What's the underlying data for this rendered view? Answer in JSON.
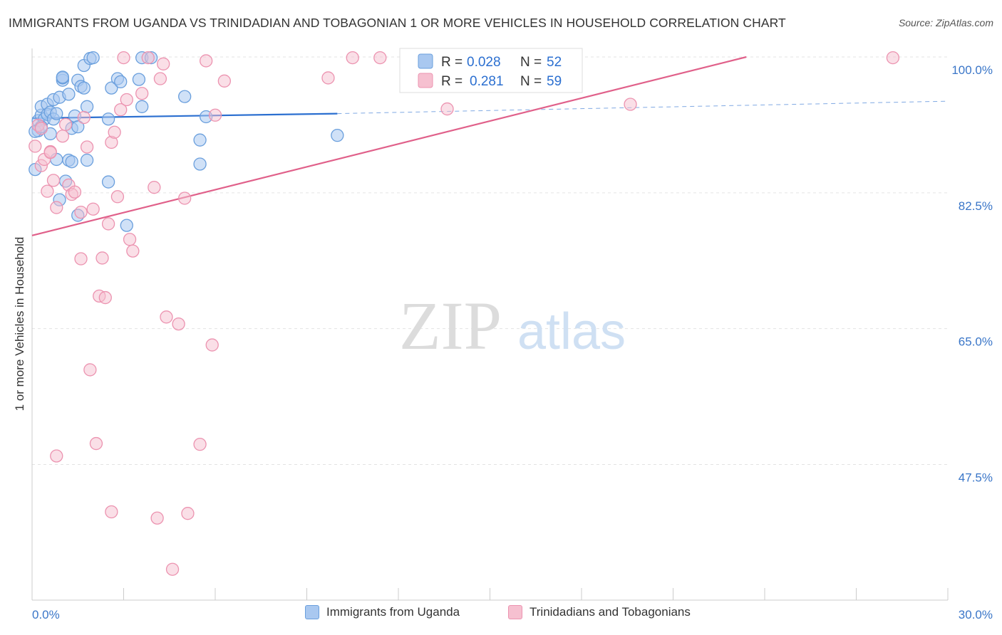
{
  "title": "IMMIGRANTS FROM UGANDA VS TRINIDADIAN AND TOBAGONIAN 1 OR MORE VEHICLES IN HOUSEHOLD CORRELATION CHART",
  "source": "Source: ZipAtlas.com",
  "watermark": {
    "zip": "ZIP",
    "atlas": "atlas"
  },
  "legend_top": {
    "rows": [
      {
        "r_label": "R =",
        "r_value": "0.028",
        "n_label": "N =",
        "n_value": "52"
      },
      {
        "r_label": "R =",
        "r_value": "0.281",
        "n_label": "N =",
        "n_value": "59"
      }
    ]
  },
  "legend_bottom": {
    "items": [
      "Immigrants from Uganda",
      "Trinidadians and Tobagonians"
    ]
  },
  "colors": {
    "blue_fill": "#a9c8f0",
    "blue_stroke": "#6a9fdd",
    "blue_line": "#2b6fd0",
    "pink_fill": "#f6c0d0",
    "pink_stroke": "#ec93b0",
    "pink_line": "#e0608a",
    "axis_text": "#3a76c8",
    "grid": "#e3e3e3"
  },
  "chart_data": {
    "type": "scatter",
    "title": "IMMIGRANTS FROM UGANDA VS TRINIDADIAN AND TOBAGONIAN 1 OR MORE VEHICLES IN HOUSEHOLD CORRELATION CHART",
    "xlabel": "",
    "ylabel": "1 or more Vehicles in Household",
    "xlim": [
      0,
      30
    ],
    "ylim": [
      29,
      101
    ],
    "x_tick_labels": [
      "0.0%",
      "30.0%"
    ],
    "y_tick_values": [
      100,
      82.5,
      65,
      47.5
    ],
    "y_tick_labels": [
      "100.0%",
      "82.5%",
      "65.0%",
      "47.5%"
    ],
    "grid": true,
    "legend_position": "top-center",
    "series": [
      {
        "name": "Immigrants from Uganda",
        "R": 0.028,
        "N": 52,
        "trend": {
          "x": [
            0,
            10
          ],
          "y": [
            92.1,
            92.7
          ],
          "dashed_x": [
            10,
            30
          ],
          "dashed_y": [
            92.7,
            94.3
          ]
        },
        "points": [
          {
            "x": 0.1,
            "y": 85.5
          },
          {
            "x": 0.2,
            "y": 90.5
          },
          {
            "x": 0.2,
            "y": 91.8
          },
          {
            "x": 0.3,
            "y": 92.5
          },
          {
            "x": 0.3,
            "y": 93.6
          },
          {
            "x": 0.4,
            "y": 92.0
          },
          {
            "x": 0.5,
            "y": 93.9
          },
          {
            "x": 0.5,
            "y": 92.6
          },
          {
            "x": 0.6,
            "y": 92.9
          },
          {
            "x": 0.6,
            "y": 90.1
          },
          {
            "x": 0.7,
            "y": 92.0
          },
          {
            "x": 0.7,
            "y": 94.5
          },
          {
            "x": 0.8,
            "y": 92.7
          },
          {
            "x": 0.8,
            "y": 86.8
          },
          {
            "x": 0.9,
            "y": 94.8
          },
          {
            "x": 0.9,
            "y": 81.6
          },
          {
            "x": 1.0,
            "y": 97.0
          },
          {
            "x": 1.0,
            "y": 97.3
          },
          {
            "x": 1.1,
            "y": 84.0
          },
          {
            "x": 1.2,
            "y": 95.2
          },
          {
            "x": 1.2,
            "y": 86.7
          },
          {
            "x": 1.3,
            "y": 90.8
          },
          {
            "x": 1.3,
            "y": 86.5
          },
          {
            "x": 1.4,
            "y": 92.4
          },
          {
            "x": 1.5,
            "y": 91.0
          },
          {
            "x": 1.5,
            "y": 79.6
          },
          {
            "x": 1.5,
            "y": 97.0
          },
          {
            "x": 1.6,
            "y": 96.2
          },
          {
            "x": 1.7,
            "y": 96.0
          },
          {
            "x": 1.7,
            "y": 98.9
          },
          {
            "x": 1.8,
            "y": 86.7
          },
          {
            "x": 1.8,
            "y": 93.6
          },
          {
            "x": 1.9,
            "y": 99.8
          },
          {
            "x": 2.0,
            "y": 99.9
          },
          {
            "x": 2.5,
            "y": 92.0
          },
          {
            "x": 2.5,
            "y": 83.9
          },
          {
            "x": 2.6,
            "y": 96.0
          },
          {
            "x": 2.8,
            "y": 97.2
          },
          {
            "x": 2.9,
            "y": 96.8
          },
          {
            "x": 3.1,
            "y": 78.3
          },
          {
            "x": 3.5,
            "y": 97.1
          },
          {
            "x": 3.6,
            "y": 99.9
          },
          {
            "x": 3.6,
            "y": 93.6
          },
          {
            "x": 3.9,
            "y": 99.9
          },
          {
            "x": 5.0,
            "y": 94.9
          },
          {
            "x": 5.5,
            "y": 86.2
          },
          {
            "x": 5.5,
            "y": 89.3
          },
          {
            "x": 5.7,
            "y": 92.3
          },
          {
            "x": 10.0,
            "y": 89.9
          },
          {
            "x": 0.1,
            "y": 90.4
          },
          {
            "x": 0.3,
            "y": 91.0
          },
          {
            "x": 1.0,
            "y": 97.4
          }
        ]
      },
      {
        "name": "Trinidadians and Tobagonians",
        "R": 0.281,
        "N": 59,
        "trend": {
          "x": [
            0,
            23.4
          ],
          "y": [
            77.0,
            100.0
          ]
        },
        "points": [
          {
            "x": 0.1,
            "y": 88.5
          },
          {
            "x": 0.2,
            "y": 91.2
          },
          {
            "x": 0.3,
            "y": 90.8
          },
          {
            "x": 0.3,
            "y": 86.0
          },
          {
            "x": 0.4,
            "y": 86.8
          },
          {
            "x": 0.5,
            "y": 82.7
          },
          {
            "x": 0.6,
            "y": 87.8
          },
          {
            "x": 0.7,
            "y": 84.1
          },
          {
            "x": 0.8,
            "y": 80.6
          },
          {
            "x": 0.8,
            "y": 48.6
          },
          {
            "x": 1.0,
            "y": 89.8
          },
          {
            "x": 1.1,
            "y": 91.3
          },
          {
            "x": 1.2,
            "y": 83.5
          },
          {
            "x": 1.3,
            "y": 82.3
          },
          {
            "x": 1.4,
            "y": 82.6
          },
          {
            "x": 1.6,
            "y": 80.0
          },
          {
            "x": 1.6,
            "y": 74.0
          },
          {
            "x": 1.7,
            "y": 92.2
          },
          {
            "x": 1.8,
            "y": 88.4
          },
          {
            "x": 1.9,
            "y": 59.7
          },
          {
            "x": 2.0,
            "y": 80.4
          },
          {
            "x": 2.1,
            "y": 50.2
          },
          {
            "x": 2.2,
            "y": 69.2
          },
          {
            "x": 2.3,
            "y": 74.1
          },
          {
            "x": 2.4,
            "y": 69.0
          },
          {
            "x": 2.5,
            "y": 78.5
          },
          {
            "x": 2.6,
            "y": 41.4
          },
          {
            "x": 2.6,
            "y": 89.0
          },
          {
            "x": 2.7,
            "y": 90.3
          },
          {
            "x": 2.8,
            "y": 82.0
          },
          {
            "x": 2.9,
            "y": 93.2
          },
          {
            "x": 3.0,
            "y": 99.9
          },
          {
            "x": 3.1,
            "y": 94.5
          },
          {
            "x": 3.2,
            "y": 76.5
          },
          {
            "x": 3.3,
            "y": 75.0
          },
          {
            "x": 3.6,
            "y": 95.3
          },
          {
            "x": 3.8,
            "y": 99.9
          },
          {
            "x": 4.0,
            "y": 83.2
          },
          {
            "x": 4.1,
            "y": 40.6
          },
          {
            "x": 4.2,
            "y": 97.2
          },
          {
            "x": 4.3,
            "y": 99.1
          },
          {
            "x": 4.4,
            "y": 66.5
          },
          {
            "x": 4.6,
            "y": 34.0
          },
          {
            "x": 4.8,
            "y": 65.6
          },
          {
            "x": 5.0,
            "y": 81.8
          },
          {
            "x": 5.1,
            "y": 41.2
          },
          {
            "x": 5.5,
            "y": 50.1
          },
          {
            "x": 5.7,
            "y": 99.5
          },
          {
            "x": 5.9,
            "y": 62.9
          },
          {
            "x": 6.0,
            "y": 92.5
          },
          {
            "x": 6.3,
            "y": 96.9
          },
          {
            "x": 9.7,
            "y": 97.3
          },
          {
            "x": 10.5,
            "y": 99.9
          },
          {
            "x": 11.4,
            "y": 99.9
          },
          {
            "x": 12.6,
            "y": 99.5
          },
          {
            "x": 13.6,
            "y": 93.3
          },
          {
            "x": 19.6,
            "y": 93.9
          },
          {
            "x": 28.2,
            "y": 99.9
          },
          {
            "x": 0.6,
            "y": 87.7
          }
        ]
      }
    ]
  }
}
